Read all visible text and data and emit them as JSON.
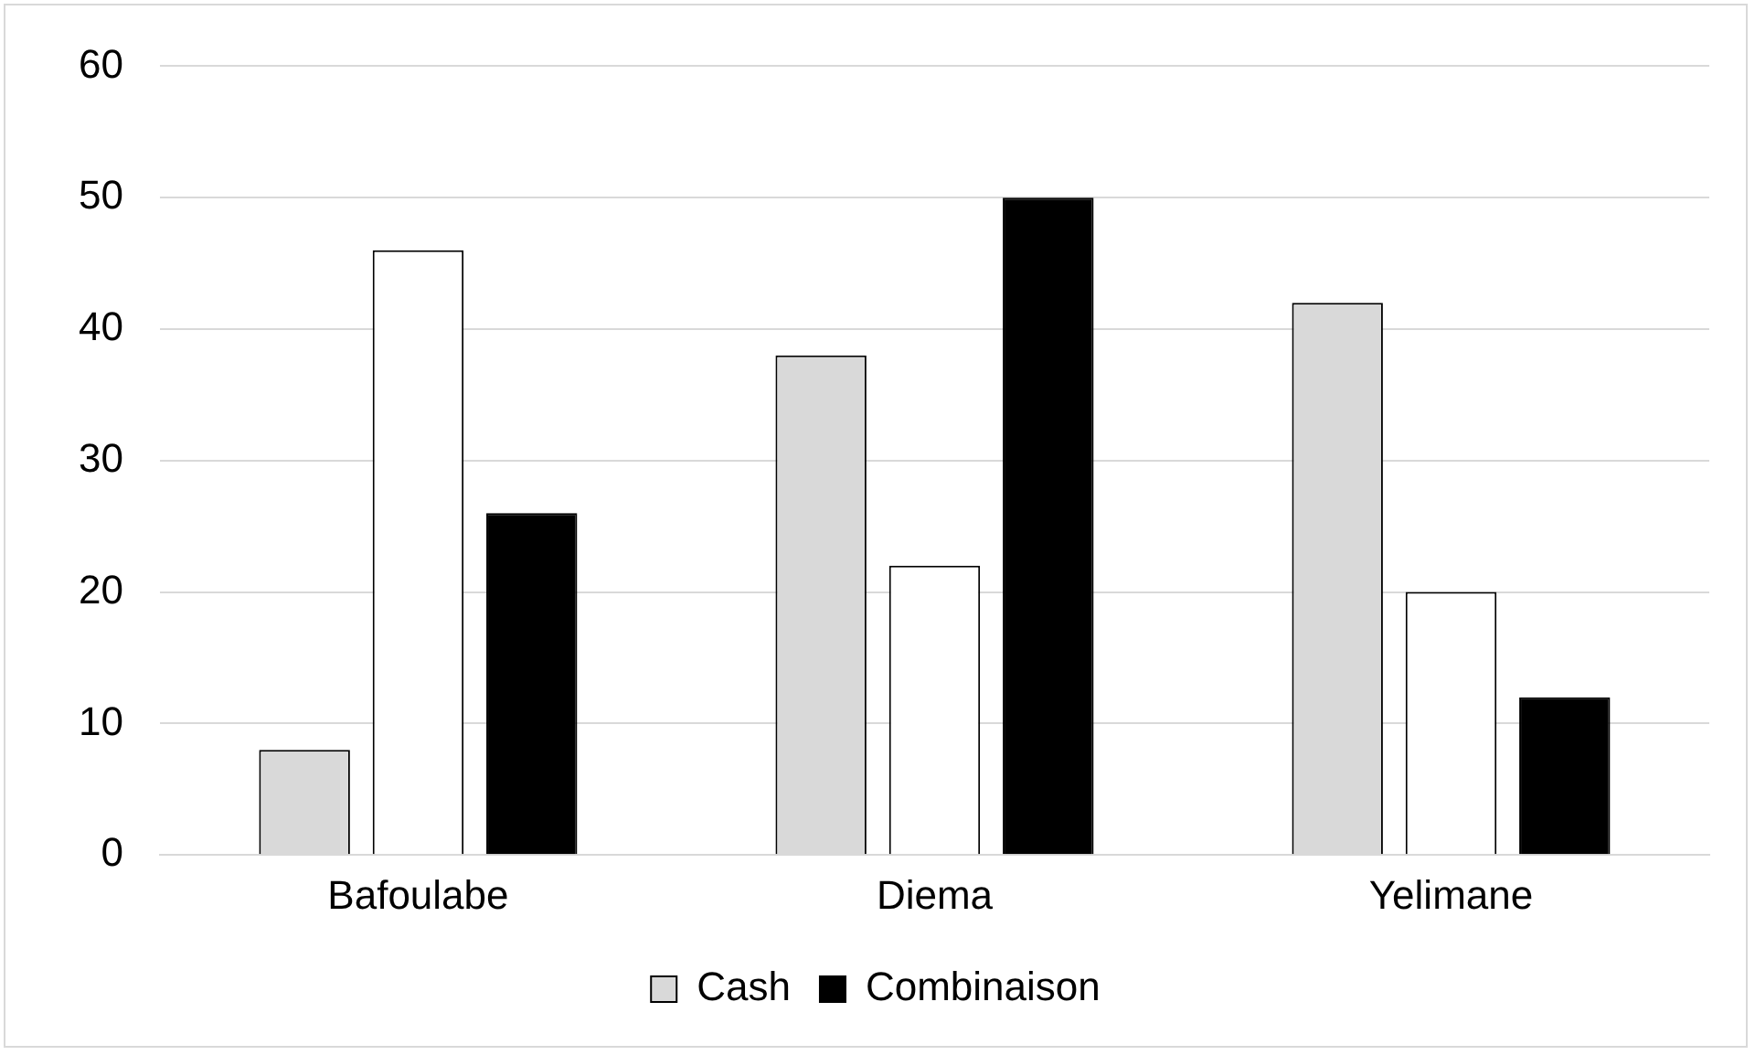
{
  "chart_data": {
    "type": "bar",
    "categories": [
      "Bafoulabe",
      "Diema",
      "Yelimane"
    ],
    "series": [
      {
        "name": "Cash",
        "color": "#d9d9d9",
        "values": [
          8,
          38,
          42
        ]
      },
      {
        "color": "#ffffff",
        "values": [
          46,
          22,
          20
        ]
      },
      {
        "name": "Combinaison",
        "color": "#000000",
        "values": [
          26,
          50,
          12
        ]
      }
    ],
    "ylim": [
      0,
      60
    ],
    "yticks": [
      0,
      10,
      20,
      30,
      40,
      50,
      60
    ],
    "grid": "y",
    "legend": "bottom"
  }
}
